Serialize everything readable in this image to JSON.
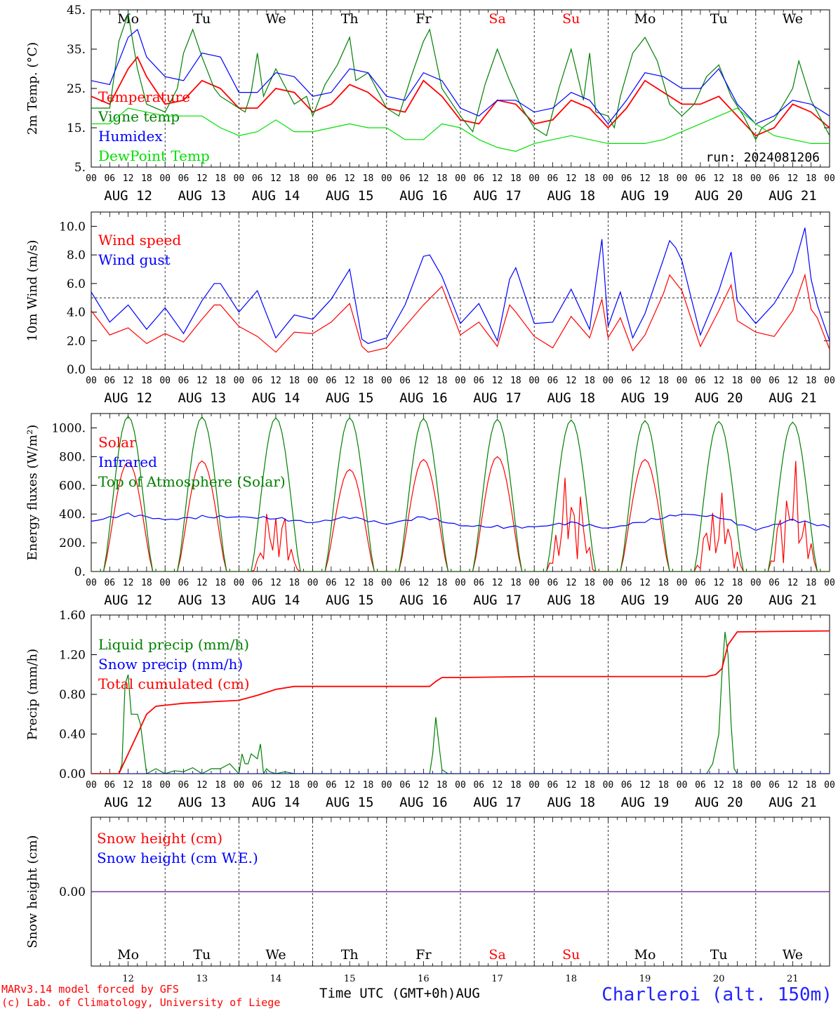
{
  "run_label": "run: 2024081206",
  "x_axis_title": "Time UTC (GMT+0h)",
  "month_label": "AUG",
  "date_labels": [
    "AUG 12",
    "AUG 13",
    "AUG 14",
    "AUG 15",
    "AUG 16",
    "AUG 17",
    "AUG 18",
    "AUG 19",
    "AUG 20",
    "AUG 21"
  ],
  "day_numbers": [
    "12",
    "13",
    "14",
    "15",
    "16",
    "17",
    "18",
    "19",
    "20",
    "21"
  ],
  "weekdays": [
    "Mo",
    "Tu",
    "We",
    "Th",
    "Fr",
    "Sa",
    "Su",
    "Mo",
    "Tu",
    "We"
  ],
  "weekend_color": "#ff0000",
  "hour_labels": [
    "00",
    "06",
    "12",
    "18"
  ],
  "footer": {
    "model": "MARv3.14 model forced by GFS",
    "lab": "(c) Lab. of Climatology, University of Liege",
    "station": "Charleroi (alt. 150m)"
  },
  "colors": {
    "red": "#ff0000",
    "green": "#008000",
    "blue": "#0000ff",
    "lightgreen": "#00e000",
    "purple": "#7030a0"
  },
  "chart_data": [
    {
      "type": "line",
      "title": "",
      "ylabel": "2m Temp. (°C)",
      "ylim": [
        5,
        45
      ],
      "yticks": [
        5,
        15,
        25,
        35,
        45
      ],
      "ytick_labels": [
        "5.",
        "15.",
        "25.",
        "35.",
        "45."
      ],
      "x_unit": "hours since AUG 12 00 UTC",
      "xlim": [
        0,
        240
      ],
      "series": [
        {
          "name": "Temperature",
          "color": "#ff0000",
          "x": [
            0,
            6,
            12,
            15,
            18,
            24,
            30,
            36,
            42,
            48,
            54,
            60,
            66,
            72,
            78,
            84,
            90,
            96,
            102,
            108,
            114,
            120,
            126,
            132,
            138,
            144,
            150,
            156,
            162,
            168,
            174,
            180,
            186,
            192,
            198,
            204,
            210,
            216,
            222,
            228,
            234,
            240
          ],
          "y": [
            23,
            21,
            30,
            33,
            28,
            21,
            22,
            27,
            25,
            20,
            20,
            25,
            24,
            19,
            21,
            26,
            24,
            20,
            19,
            27,
            23,
            17,
            16,
            22,
            21,
            16,
            17,
            22,
            20,
            15,
            20,
            27,
            24,
            21,
            21,
            23,
            18,
            13,
            15,
            21,
            19,
            15
          ]
        },
        {
          "name": "Vigne temp",
          "color": "#008000",
          "x": [
            0,
            6,
            9,
            12,
            15,
            18,
            24,
            28,
            30,
            33,
            36,
            40,
            42,
            48,
            50,
            52,
            54,
            56,
            60,
            66,
            70,
            72,
            76,
            80,
            84,
            86,
            90,
            96,
            100,
            104,
            108,
            110,
            114,
            120,
            124,
            128,
            132,
            136,
            140,
            144,
            148,
            152,
            156,
            160,
            162,
            164,
            168,
            170,
            172,
            176,
            180,
            184,
            188,
            192,
            196,
            200,
            204,
            208,
            212,
            216,
            218,
            222,
            228,
            230,
            234,
            240
          ],
          "y": [
            20,
            20,
            37,
            44,
            30,
            21,
            19,
            25,
            34,
            40,
            33,
            25,
            23,
            20,
            19,
            24,
            34,
            23,
            30,
            21,
            23,
            18,
            26,
            31,
            38,
            27,
            29,
            20,
            18,
            28,
            37,
            40,
            25,
            18,
            14,
            26,
            35,
            27,
            20,
            15,
            13,
            25,
            35,
            22,
            34,
            19,
            18,
            15,
            23,
            34,
            38,
            32,
            21,
            18,
            21,
            28,
            31,
            23,
            18,
            12,
            15,
            17,
            25,
            32,
            22,
            13
          ]
        },
        {
          "name": "Humidex",
          "color": "#0000ff",
          "x": [
            0,
            6,
            12,
            15,
            18,
            24,
            30,
            36,
            42,
            48,
            54,
            60,
            66,
            72,
            78,
            84,
            90,
            96,
            102,
            108,
            114,
            120,
            126,
            132,
            138,
            144,
            150,
            156,
            162,
            168,
            174,
            180,
            186,
            192,
            198,
            204,
            210,
            216,
            222,
            228,
            234,
            240
          ],
          "y": [
            27,
            26,
            38,
            40,
            33,
            28,
            27,
            34,
            33,
            24,
            24,
            29,
            28,
            23,
            24,
            30,
            29,
            23,
            22,
            29,
            27,
            20,
            18,
            22,
            22,
            19,
            20,
            24,
            22,
            16,
            22,
            29,
            28,
            25,
            25,
            30,
            21,
            16,
            18,
            22,
            21,
            18
          ]
        },
        {
          "name": "DewPoint Temp",
          "color": "#00e000",
          "x": [
            0,
            6,
            12,
            18,
            24,
            30,
            36,
            42,
            48,
            54,
            60,
            66,
            72,
            78,
            84,
            90,
            96,
            102,
            108,
            114,
            120,
            126,
            132,
            138,
            144,
            150,
            156,
            162,
            168,
            174,
            180,
            186,
            192,
            198,
            204,
            210,
            216,
            222,
            228,
            234,
            240
          ],
          "y": [
            16,
            16,
            20,
            19,
            18,
            18,
            18,
            15,
            13,
            14,
            17,
            14,
            14,
            15,
            16,
            15,
            15,
            12,
            12,
            16,
            15,
            12,
            10,
            9,
            11,
            12,
            13,
            12,
            11,
            11,
            11,
            12,
            14,
            16,
            18,
            20,
            16,
            13,
            12,
            11,
            11
          ]
        }
      ]
    },
    {
      "type": "line",
      "title": "",
      "ylabel": "10m Wind (m/s)",
      "ylim": [
        0,
        11
      ],
      "yticks": [
        0,
        2,
        4,
        6,
        8,
        10
      ],
      "ytick_labels": [
        "0.0",
        "2.0",
        "4.0",
        "6.0",
        "8.0",
        "10.0"
      ],
      "reference_line": 5,
      "x_unit": "hours since AUG 12 00 UTC",
      "xlim": [
        0,
        240
      ],
      "series": [
        {
          "name": "Wind speed",
          "color": "#ff0000",
          "x": [
            0,
            6,
            12,
            18,
            24,
            30,
            36,
            40,
            42,
            48,
            54,
            60,
            66,
            72,
            78,
            84,
            88,
            90,
            96,
            102,
            108,
            114,
            120,
            126,
            132,
            136,
            138,
            144,
            150,
            156,
            162,
            166,
            168,
            172,
            176,
            180,
            186,
            188,
            192,
            198,
            204,
            208,
            210,
            216,
            222,
            228,
            232,
            234,
            236,
            240
          ],
          "y": [
            4.1,
            2.4,
            2.9,
            1.8,
            2.5,
            1.9,
            3.5,
            4.5,
            4.5,
            3.0,
            2.3,
            1.2,
            2.6,
            2.5,
            3.3,
            4.6,
            1.6,
            1.2,
            1.5,
            3.0,
            4.5,
            5.8,
            2.4,
            3.3,
            1.6,
            4.5,
            4.0,
            2.3,
            1.5,
            3.7,
            2.2,
            4.9,
            2.2,
            3.6,
            1.3,
            2.4,
            5.3,
            6.6,
            5.5,
            1.6,
            4.1,
            5.9,
            3.4,
            2.6,
            2.3,
            4.1,
            6.6,
            4.2,
            3.6,
            1.4
          ]
        },
        {
          "name": "Wind gust",
          "color": "#0000ff",
          "x": [
            0,
            6,
            12,
            18,
            24,
            30,
            36,
            40,
            42,
            48,
            54,
            60,
            66,
            72,
            78,
            84,
            88,
            90,
            96,
            102,
            108,
            110,
            114,
            120,
            126,
            132,
            136,
            138,
            144,
            150,
            156,
            162,
            166,
            168,
            172,
            176,
            180,
            186,
            188,
            190,
            192,
            198,
            204,
            208,
            210,
            216,
            222,
            228,
            232,
            234,
            236,
            240
          ],
          "y": [
            5.4,
            3.3,
            4.5,
            2.8,
            4.3,
            2.5,
            4.8,
            6.0,
            6.0,
            4.0,
            5.5,
            2.2,
            3.8,
            3.5,
            4.9,
            7.0,
            2.1,
            1.8,
            2.2,
            4.5,
            7.9,
            8.0,
            6.5,
            3.2,
            4.6,
            2.0,
            6.3,
            7.1,
            3.2,
            3.3,
            5.6,
            2.8,
            9.1,
            3.0,
            5.4,
            2.2,
            3.9,
            7.7,
            9.0,
            8.5,
            7.6,
            2.4,
            5.5,
            8.2,
            4.8,
            3.2,
            4.6,
            6.8,
            9.9,
            6.3,
            4.5,
            2.0
          ]
        }
      ]
    },
    {
      "type": "line",
      "title": "",
      "ylabel": "Energy fluxes (W/m²)",
      "ylim": [
        0,
        1100
      ],
      "yticks": [
        0,
        200,
        400,
        600,
        800,
        1000
      ],
      "ytick_labels": [
        "0.",
        "200.",
        "400.",
        "600.",
        "800.",
        "1000."
      ],
      "x_unit": "hours since AUG 12 00 UTC",
      "xlim": [
        0,
        240
      ],
      "series": [
        {
          "name": "Solar",
          "color": "#ff0000",
          "peaks": [
            760,
            770,
            500,
            710,
            780,
            800,
            720,
            780,
            570,
            770
          ]
        },
        {
          "name": "Infrared",
          "color": "#0000ff",
          "x": [
            0,
            12,
            24,
            36,
            48,
            60,
            72,
            84,
            96,
            108,
            120,
            132,
            144,
            156,
            168,
            180,
            192,
            204,
            216,
            228,
            240
          ],
          "y": [
            350,
            400,
            360,
            380,
            380,
            370,
            340,
            380,
            330,
            380,
            320,
            310,
            310,
            340,
            300,
            350,
            400,
            380,
            290,
            360,
            310
          ]
        },
        {
          "name": "Top of Atmosphere (Solar)",
          "color": "#008000",
          "peaks": [
            1080,
            1075,
            1070,
            1070,
            1065,
            1060,
            1055,
            1050,
            1045,
            1040
          ]
        }
      ]
    },
    {
      "type": "line",
      "title": "",
      "ylabel": "Precip (mm/h)",
      "ylim": [
        0,
        1.6
      ],
      "yticks": [
        0,
        0.4,
        0.8,
        1.2,
        1.6
      ],
      "ytick_labels": [
        "0.00",
        "0.40",
        "0.80",
        "1.20",
        "1.60"
      ],
      "x_unit": "hours since AUG 12 00 UTC",
      "xlim": [
        0,
        240
      ],
      "series": [
        {
          "name": "Liquid precip (mm/h)",
          "color": "#008000",
          "x": [
            0,
            9,
            10,
            11,
            12,
            13,
            15,
            16,
            18,
            21,
            24,
            27,
            30,
            33,
            36,
            39,
            42,
            45,
            48,
            49,
            50,
            51,
            52,
            54,
            55,
            56,
            57,
            58,
            60,
            63,
            66,
            110,
            111,
            112,
            113,
            114,
            115,
            116,
            200,
            202,
            204,
            205,
            206,
            207,
            208,
            209,
            210,
            240
          ],
          "y": [
            0,
            0,
            0.1,
            0.9,
            1.0,
            0.6,
            0.6,
            0.5,
            0,
            0.05,
            0,
            0.03,
            0.02,
            0.06,
            0,
            0.05,
            0.05,
            0.1,
            0,
            0.2,
            0.1,
            0.1,
            0.2,
            0.15,
            0.3,
            0,
            0.05,
            0.02,
            0,
            0.02,
            0,
            0,
            0.2,
            0.57,
            0.3,
            0.04,
            0.02,
            0,
            0,
            0.1,
            0.4,
            1.0,
            1.43,
            1.2,
            0.5,
            0.05,
            0,
            0
          ]
        },
        {
          "name": "Snow precip (mm/h)",
          "color": "#0000ff",
          "x": [
            0,
            240
          ],
          "y": [
            0,
            0
          ]
        },
        {
          "name": "Total cumulated (cm)",
          "color": "#ff0000",
          "x": [
            0,
            9,
            12,
            15,
            18,
            21,
            24,
            27,
            30,
            36,
            42,
            48,
            54,
            60,
            66,
            72,
            84,
            96,
            108,
            110,
            112,
            114,
            120,
            144,
            168,
            192,
            200,
            203,
            205,
            207,
            210,
            240
          ],
          "y": [
            0,
            0,
            0.2,
            0.4,
            0.6,
            0.68,
            0.69,
            0.7,
            0.71,
            0.72,
            0.73,
            0.74,
            0.79,
            0.85,
            0.88,
            0.88,
            0.88,
            0.88,
            0.88,
            0.88,
            0.93,
            0.97,
            0.97,
            0.98,
            0.98,
            0.98,
            0.98,
            1.0,
            1.06,
            1.3,
            1.43,
            1.44
          ]
        }
      ]
    },
    {
      "type": "line",
      "title": "",
      "ylabel": "Snow height (cm)",
      "ylim": [
        -1,
        1
      ],
      "yticks": [
        0
      ],
      "ytick_labels": [
        "0.00"
      ],
      "x_unit": "hours since AUG 12 00 UTC",
      "xlim": [
        0,
        240
      ],
      "series": [
        {
          "name": "Snow height (cm)",
          "color": "#ff0000",
          "x": [
            0,
            240
          ],
          "y": [
            0,
            0
          ]
        },
        {
          "name": "Snow height (cm W.E.)",
          "color": "#0000ff",
          "x": [
            0,
            240
          ],
          "y": [
            0,
            0
          ]
        }
      ]
    }
  ]
}
